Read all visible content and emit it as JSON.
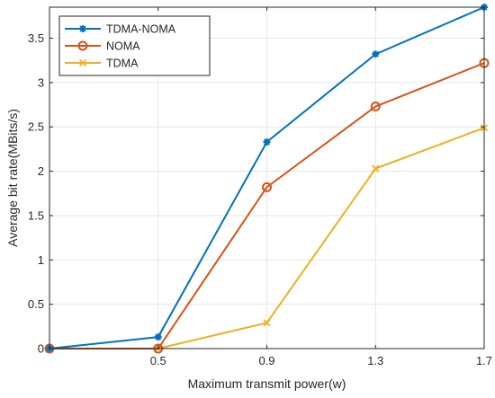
{
  "chart_data": {
    "type": "line",
    "xlabel": "Maximum transmit power(w)",
    "ylabel": "Average bit rate(MBits/s)",
    "x": [
      0.1,
      0.5,
      0.9,
      1.3,
      1.7
    ],
    "xlim": [
      0.1,
      1.7
    ],
    "ylim": [
      0,
      3.85
    ],
    "x_ticks": [
      0.5,
      0.9,
      1.3,
      1.7
    ],
    "x_tick_labels": [
      "0.5",
      "0.9",
      "1.3",
      "1.7"
    ],
    "y_ticks": [
      0,
      0.5,
      1,
      1.5,
      2,
      2.5,
      3,
      3.5
    ],
    "y_tick_labels": [
      "0",
      "0.5",
      "1",
      "1.5",
      "2",
      "2.5",
      "3",
      "3.5"
    ],
    "grid": true,
    "legend_position": "top-left",
    "series": [
      {
        "name": "TDMA-NOMA",
        "values": [
          0,
          0.13,
          2.33,
          3.32,
          3.85
        ],
        "color": "#0072BD",
        "marker": "star"
      },
      {
        "name": "NOMA",
        "values": [
          0,
          0,
          1.82,
          2.73,
          3.22
        ],
        "color": "#D95319",
        "marker": "circle"
      },
      {
        "name": "TDMA",
        "values": [
          0,
          0,
          0.29,
          2.03,
          2.49
        ],
        "color": "#EDB120",
        "marker": "x"
      }
    ]
  }
}
